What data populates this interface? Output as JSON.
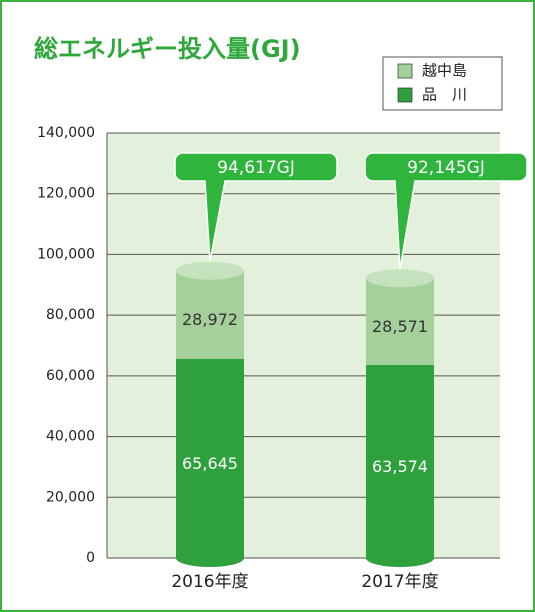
{
  "chart_data": {
    "type": "bar",
    "stacked": true,
    "title": "総エネルギー投入量(GJ)",
    "categories": [
      "2016年度",
      "2017年度"
    ],
    "series": [
      {
        "name": "品　川",
        "color": "#2ea13c",
        "values": [
          65645,
          63574
        ],
        "value_labels": [
          "65,645",
          "63,574"
        ]
      },
      {
        "name": "越中島",
        "color": "#a5d09c",
        "values": [
          28972,
          28571
        ],
        "value_labels": [
          "28,972",
          "28,571"
        ]
      }
    ],
    "totals": [
      94617,
      92145
    ],
    "total_labels": [
      "94,617GJ",
      "92,145GJ"
    ],
    "ylim": [
      0,
      140000
    ],
    "yticks": [
      0,
      {
        "value": 20000,
        "label": "20,000"
      },
      {
        "value": 40000,
        "label": "40,000"
      },
      {
        "value": 60000,
        "label": "60,000"
      },
      {
        "value": 80000,
        "label": "80,000"
      },
      {
        "value": 100000,
        "label": "100,000"
      },
      {
        "value": 120000,
        "label": "120,000"
      },
      {
        "value": 140000,
        "label": "140,000"
      }
    ],
    "grid": true,
    "legend": "upper right"
  }
}
